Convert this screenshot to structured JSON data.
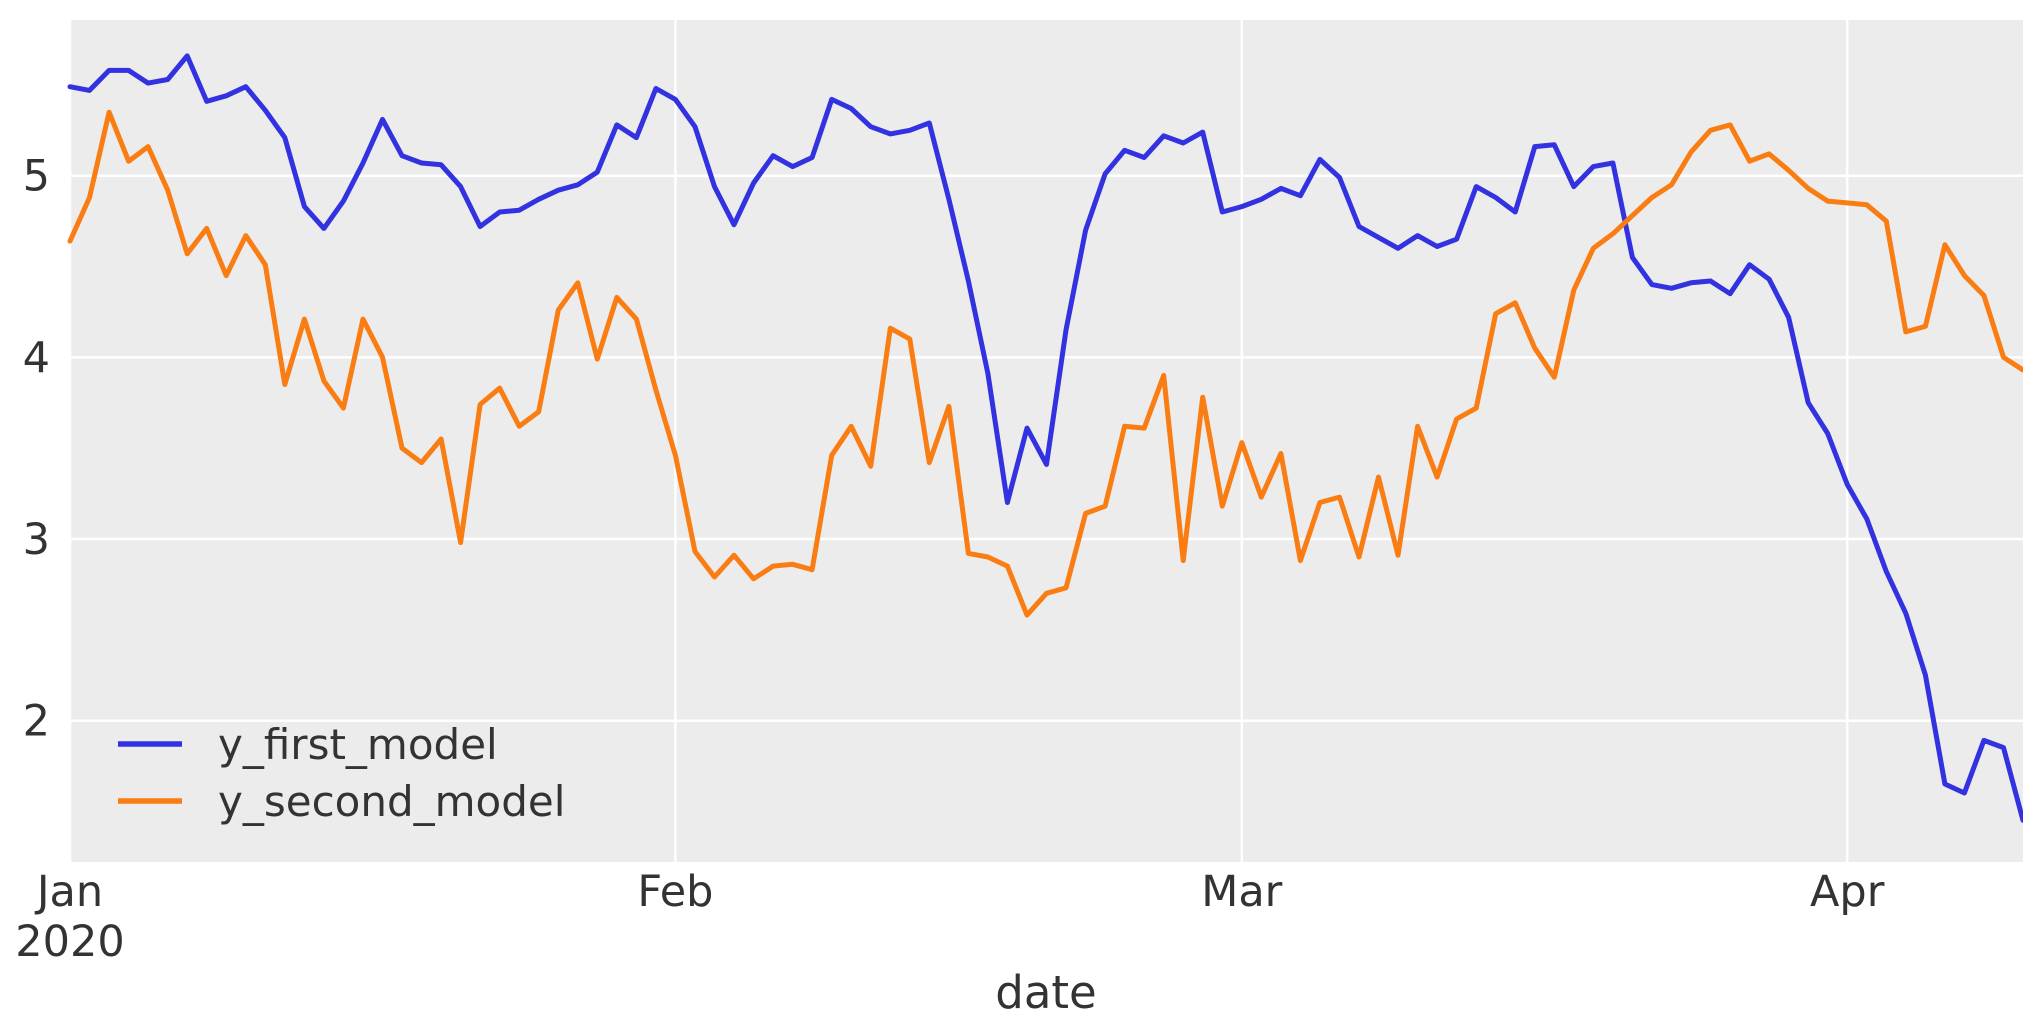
{
  "chart_data": {
    "type": "line",
    "title": "",
    "xlabel": "date",
    "ylabel": "",
    "x_start_label": "Jan",
    "x_year_label": "2020",
    "x_tick_labels": [
      "Jan",
      "Feb",
      "Mar",
      "Apr"
    ],
    "x_tick_days": [
      0,
      31,
      60,
      91
    ],
    "y_tick_labels": [
      "5",
      "4",
      "3",
      "2"
    ],
    "y_ticks": [
      5,
      4,
      3,
      2
    ],
    "xlim_days": [
      0,
      100
    ],
    "ylim": [
      1.22,
      5.86
    ],
    "grid": true,
    "plot_background": "#ECECEC",
    "grid_color": "#FFFFFF",
    "legend_position": "lower left",
    "x_frequency": "daily",
    "series": [
      {
        "name": "y_first_model",
        "color": "#3232E1",
        "values": [
          5.49,
          5.47,
          5.58,
          5.58,
          5.51,
          5.53,
          5.66,
          5.41,
          5.44,
          5.49,
          5.36,
          5.21,
          4.83,
          4.71,
          4.86,
          5.07,
          5.31,
          5.11,
          5.07,
          5.06,
          4.94,
          4.72,
          4.8,
          4.81,
          4.87,
          4.92,
          4.95,
          5.02,
          5.28,
          5.21,
          5.48,
          5.42,
          5.27,
          4.94,
          4.73,
          4.96,
          5.11,
          5.05,
          5.1,
          5.42,
          5.37,
          5.27,
          5.23,
          5.25,
          5.29,
          4.87,
          4.42,
          3.91,
          3.2,
          3.61,
          3.41,
          4.15,
          4.7,
          5.01,
          5.14,
          5.1,
          5.22,
          5.18,
          5.24,
          4.8,
          4.83,
          4.87,
          4.93,
          4.89,
          5.09,
          4.99,
          4.72,
          4.66,
          4.6,
          4.67,
          4.61,
          4.65,
          4.94,
          4.88,
          4.8,
          5.16,
          5.17,
          4.94,
          5.05,
          5.07,
          4.55,
          4.4,
          4.38,
          4.41,
          4.42,
          4.35,
          4.51,
          4.43,
          4.22,
          3.75,
          3.58,
          3.3,
          3.11,
          2.82,
          2.59,
          2.25,
          1.65,
          1.6,
          1.89,
          1.85,
          1.45
        ]
      },
      {
        "name": "y_second_model",
        "color": "#F97D13",
        "values": [
          4.64,
          4.88,
          5.35,
          5.08,
          5.16,
          4.92,
          4.57,
          4.71,
          4.45,
          4.67,
          4.51,
          3.85,
          4.21,
          3.87,
          3.72,
          4.21,
          4.0,
          3.5,
          3.42,
          3.55,
          2.98,
          3.74,
          3.83,
          3.62,
          3.7,
          4.26,
          4.41,
          3.99,
          4.33,
          4.21,
          3.82,
          3.46,
          2.93,
          2.79,
          2.91,
          2.78,
          2.85,
          2.86,
          2.83,
          3.46,
          3.62,
          3.4,
          4.16,
          4.1,
          3.42,
          3.73,
          2.92,
          2.9,
          2.85,
          2.58,
          2.7,
          2.73,
          3.14,
          3.18,
          3.62,
          3.61,
          3.9,
          2.88,
          3.78,
          3.18,
          3.53,
          3.23,
          3.47,
          2.88,
          3.2,
          3.23,
          2.9,
          3.34,
          2.91,
          3.62,
          3.34,
          3.66,
          3.72,
          4.24,
          4.3,
          4.05,
          3.89,
          4.37,
          4.6,
          4.68,
          4.78,
          4.88,
          4.95,
          5.13,
          5.25,
          5.28,
          5.08,
          5.12,
          5.03,
          4.93,
          4.86,
          4.85,
          4.84,
          4.75,
          4.14,
          4.17,
          4.62,
          4.45,
          4.34,
          4.0,
          3.93
        ]
      }
    ]
  }
}
